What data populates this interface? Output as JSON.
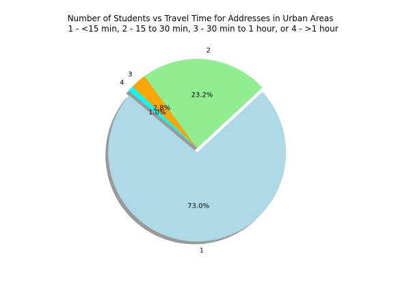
{
  "chart_data": {
    "type": "pie",
    "title_line1": "Number of Students vs Travel Time for Addresses in Urban Areas",
    "title_line2": "1 - <15 min, 2 - 15 to 30 min, 3 - 30 min to 1 hour, or 4 - >1 hour",
    "categories": [
      "1",
      "2",
      "3",
      "4"
    ],
    "values": [
      73.0,
      23.2,
      2.8,
      1.0
    ],
    "value_labels": [
      "73.0%",
      "23.2%",
      "2.8%",
      "1.0%"
    ],
    "colors": [
      "#add8e6",
      "#90ee90",
      "#ffa500",
      "#00ffff"
    ],
    "exploded_slice": "1",
    "shadow": true,
    "start_angle_deg": 140,
    "legend": "none"
  }
}
